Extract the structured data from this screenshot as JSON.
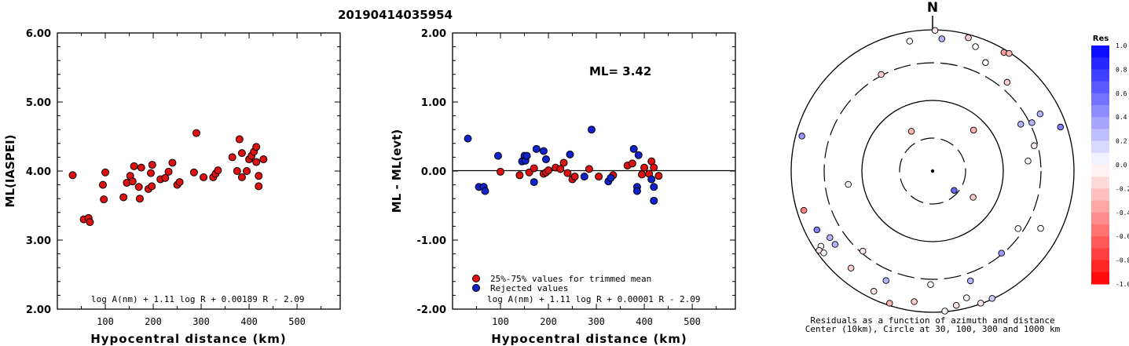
{
  "page_title": "20190414035954",
  "chart_data": [
    {
      "type": "scatter",
      "ylabel": "ML(IASPEI)",
      "xlabel": "Hypocentral distance (km)",
      "xlim": [
        0,
        590
      ],
      "ylim": [
        2.0,
        6.0
      ],
      "x_ticks": [
        "100",
        "200",
        "300",
        "400",
        "500"
      ],
      "y_ticks": [
        "2.00",
        "3.00",
        "4.00",
        "5.00",
        "6.00"
      ],
      "formula": "log A(nm) + 1.11 log R + 0.00189 R - 2.09",
      "marker_color": "#dd1111",
      "points": [
        [
          32,
          3.94
        ],
        [
          55,
          3.3
        ],
        [
          65,
          3.32
        ],
        [
          68,
          3.26
        ],
        [
          95,
          3.8
        ],
        [
          97,
          3.59
        ],
        [
          100,
          3.98
        ],
        [
          138,
          3.62
        ],
        [
          145,
          3.83
        ],
        [
          152,
          3.93
        ],
        [
          157,
          3.85
        ],
        [
          160,
          4.07
        ],
        [
          170,
          3.77
        ],
        [
          172,
          3.6
        ],
        [
          175,
          4.05
        ],
        [
          190,
          3.74
        ],
        [
          195,
          3.97
        ],
        [
          197,
          3.78
        ],
        [
          198,
          4.09
        ],
        [
          215,
          3.88
        ],
        [
          225,
          3.9
        ],
        [
          232,
          3.99
        ],
        [
          240,
          4.12
        ],
        [
          250,
          3.8
        ],
        [
          255,
          3.84
        ],
        [
          285,
          3.98
        ],
        [
          290,
          4.55
        ],
        [
          305,
          3.91
        ],
        [
          325,
          3.91
        ],
        [
          330,
          3.96
        ],
        [
          335,
          4.01
        ],
        [
          365,
          4.2
        ],
        [
          375,
          4.0
        ],
        [
          380,
          4.46
        ],
        [
          385,
          3.91
        ],
        [
          385,
          4.26
        ],
        [
          395,
          4.0
        ],
        [
          400,
          4.17
        ],
        [
          405,
          4.22
        ],
        [
          410,
          4.28
        ],
        [
          415,
          4.35
        ],
        [
          415,
          4.13
        ],
        [
          420,
          3.93
        ],
        [
          420,
          3.78
        ],
        [
          430,
          4.17
        ]
      ]
    },
    {
      "type": "scatter",
      "ylabel": "ML - ML(evt)",
      "xlabel": "Hypocentral distance (km)",
      "xlim": [
        0,
        590
      ],
      "ylim": [
        -2.0,
        2.0
      ],
      "x_ticks": [
        "100",
        "200",
        "300",
        "400",
        "500"
      ],
      "y_ticks": [
        "-2.00",
        "-1.00",
        "0.00",
        "1.00",
        "2.00"
      ],
      "annotation": "ML= 3.42",
      "formula": "log A(nm) + 1.11 log R + 0.00001 R - 2.09",
      "legend": [
        "25%-75% values for trimmed mean",
        "Rejected values"
      ],
      "series": [
        {
          "name": "25%-75% values for trimmed mean",
          "color": "#dd1111",
          "points": [
            [
              100,
              -0.01
            ],
            [
              140,
              -0.06
            ],
            [
              160,
              -0.02
            ],
            [
              170,
              0.04
            ],
            [
              190,
              -0.04
            ],
            [
              195,
              -0.02
            ],
            [
              200,
              0.01
            ],
            [
              215,
              0.05
            ],
            [
              225,
              0.03
            ],
            [
              232,
              0.12
            ],
            [
              240,
              -0.03
            ],
            [
              250,
              -0.12
            ],
            [
              255,
              -0.08
            ],
            [
              285,
              0.03
            ],
            [
              305,
              -0.08
            ],
            [
              335,
              -0.06
            ],
            [
              365,
              0.08
            ],
            [
              375,
              0.11
            ],
            [
              395,
              -0.05
            ],
            [
              400,
              0.05
            ],
            [
              410,
              -0.04
            ],
            [
              415,
              0.14
            ],
            [
              420,
              0.05
            ],
            [
              430,
              -0.07
            ]
          ]
        },
        {
          "name": "Rejected values",
          "color": "#1122cc",
          "points": [
            [
              32,
              0.47
            ],
            [
              55,
              -0.23
            ],
            [
              65,
              -0.23
            ],
            [
              68,
              -0.29
            ],
            [
              95,
              0.22
            ],
            [
              145,
              0.14
            ],
            [
              150,
              0.22
            ],
            [
              152,
              0.15
            ],
            [
              155,
              0.22
            ],
            [
              170,
              -0.16
            ],
            [
              175,
              0.32
            ],
            [
              190,
              0.29
            ],
            [
              195,
              0.17
            ],
            [
              245,
              0.24
            ],
            [
              275,
              -0.08
            ],
            [
              290,
              0.6
            ],
            [
              325,
              -0.15
            ],
            [
              330,
              -0.1
            ],
            [
              378,
              0.32
            ],
            [
              385,
              -0.23
            ],
            [
              385,
              -0.29
            ],
            [
              388,
              0.23
            ],
            [
              415,
              -0.12
            ],
            [
              420,
              -0.23
            ],
            [
              420,
              -0.43
            ]
          ]
        }
      ]
    },
    {
      "type": "polar",
      "north_label": "N",
      "caption": [
        "Residuals as a function of azimuth and distance",
        "Center (10km), Circle at 30, 100, 300 and 1000 km"
      ],
      "colorbar_title": "Res",
      "colorbar_ticks": [
        "1.0",
        "0.8",
        "0.6",
        "0.4",
        "0.2",
        "0.0",
        "-0.2",
        "-0.4",
        "-0.6",
        "-0.8",
        "-1.0"
      ],
      "colorbar_range": [
        -1.0,
        1.0
      ],
      "station_residuals": [
        {
          "azimuth": 1,
          "distance": 437,
          "res": -0.1
        },
        {
          "azimuth": 350,
          "distance": 410,
          "res": 0.0
        },
        {
          "azimuth": 4,
          "distance": 412,
          "res": 0.3
        },
        {
          "azimuth": 15,
          "distance": 429,
          "res": -0.2
        },
        {
          "azimuth": 19,
          "distance": 409,
          "res": 0.0
        },
        {
          "azimuth": 26,
          "distance": 375,
          "res": 0.0
        },
        {
          "azimuth": 31,
          "distance": 430,
          "res": -0.4
        },
        {
          "azimuth": 33,
          "distance": 436,
          "res": -0.3
        },
        {
          "azimuth": 40,
          "distance": 360,
          "res": -0.2
        },
        {
          "azimuth": 332,
          "distance": 340,
          "res": -0.2
        },
        {
          "azimuth": 332,
          "distance": 140,
          "res": -0.3
        },
        {
          "azimuth": 45,
          "distance": 180,
          "res": -0.3
        },
        {
          "azimuth": 62,
          "distance": 310,
          "res": 0.3
        },
        {
          "azimuth": 64,
          "distance": 343,
          "res": 0.3
        },
        {
          "azimuth": 62,
          "distance": 378,
          "res": 0.3
        },
        {
          "azimuth": 71,
          "distance": 420,
          "res": 0.5
        },
        {
          "azimuth": 76,
          "distance": 325,
          "res": -0.1
        },
        {
          "azimuth": 84,
          "distance": 298,
          "res": 0.0
        },
        {
          "azimuth": 285,
          "distance": 420,
          "res": 0.4
        },
        {
          "azimuth": 261,
          "distance": 265,
          "res": 0.0
        },
        {
          "azimuth": 253,
          "distance": 418,
          "res": -0.5
        },
        {
          "azimuth": 243,
          "distance": 403,
          "res": 0.5
        },
        {
          "azimuth": 237,
          "distance": 380,
          "res": 0.3
        },
        {
          "azimuth": 236,
          "distance": 418,
          "res": 0.0
        },
        {
          "azimuth": 235,
          "distance": 430,
          "res": -0.1
        },
        {
          "azimuth": 233,
          "distance": 423,
          "res": 0.0
        },
        {
          "azimuth": 233,
          "distance": 379,
          "res": 0.3
        },
        {
          "azimuth": 221,
          "distance": 330,
          "res": -0.1
        },
        {
          "azimuth": 220,
          "distance": 394,
          "res": -0.2
        },
        {
          "azimuth": 203,
          "distance": 370,
          "res": 0.3
        },
        {
          "azimuth": 206,
          "distance": 416,
          "res": -0.1
        },
        {
          "azimuth": 198,
          "distance": 432,
          "res": -0.3
        },
        {
          "azimuth": 188,
          "distance": 410,
          "res": -0.2
        },
        {
          "azimuth": 181,
          "distance": 353,
          "res": 0.0
        },
        {
          "azimuth": 175,
          "distance": 437,
          "res": 0.0
        },
        {
          "azimuth": 170,
          "distance": 424,
          "res": -0.1
        },
        {
          "azimuth": 165,
          "distance": 408,
          "res": 0.0
        },
        {
          "azimuth": 161,
          "distance": 361,
          "res": 0.3
        },
        {
          "azimuth": 160,
          "distance": 437,
          "res": -0.1
        },
        {
          "azimuth": 155,
          "distance": 437,
          "res": 0.2
        },
        {
          "azimuth": 140,
          "distance": 333,
          "res": 0.4
        },
        {
          "azimuth": 124,
          "distance": 320,
          "res": 0.0
        },
        {
          "azimuth": 118,
          "distance": 380,
          "res": 0.0
        },
        {
          "azimuth": 123,
          "distance": 150,
          "res": -0.2
        },
        {
          "azimuth": 132,
          "distance": 90,
          "res": 0.6
        }
      ]
    }
  ]
}
